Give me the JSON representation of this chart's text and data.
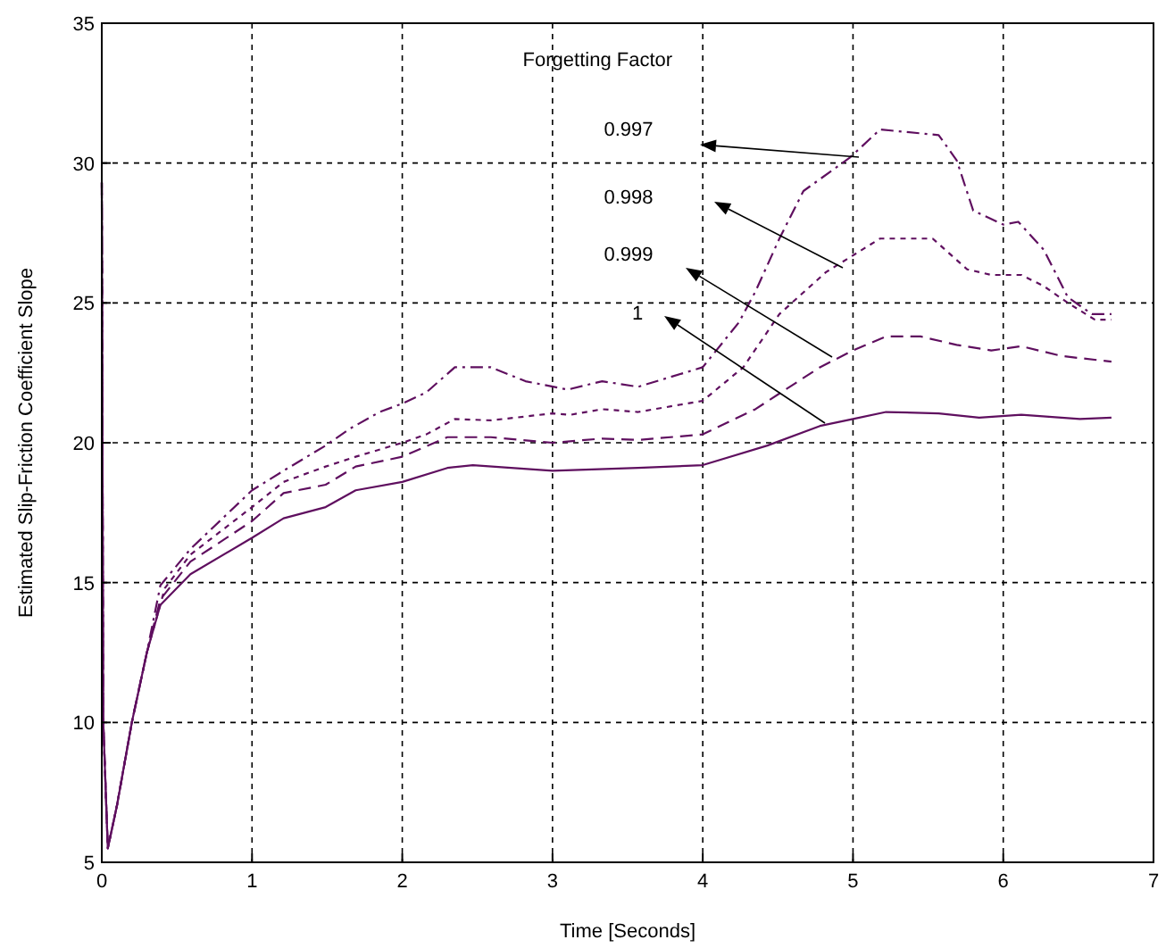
{
  "chart_data": {
    "type": "line",
    "xlabel": "Time [Seconds]",
    "ylabel": "Estimated Slip-Friction Coefficient Slope",
    "legend_title": "Forgetting Factor",
    "xlim": [
      0,
      7
    ],
    "ylim": [
      5,
      35
    ],
    "xticks": [
      0,
      1,
      2,
      3,
      4,
      5,
      6,
      7
    ],
    "yticks": [
      5,
      10,
      15,
      20,
      25,
      30,
      35
    ],
    "grid": true,
    "annotations": [
      "0.997",
      "0.998",
      "0.999",
      "1"
    ],
    "series": [
      {
        "color": "#5f0f5f",
        "line_style": "dashdot",
        "x": [
          0,
          0.01,
          0.04,
          0.1,
          0.2,
          0.3,
          0.39,
          0.59,
          1.0,
          1.21,
          1.49,
          1.65,
          1.85,
          2.0,
          2.16,
          2.35,
          2.59,
          2.82,
          3.1,
          3.33,
          3.57,
          4.0,
          4.24,
          4.35,
          4.51,
          4.67,
          4.98,
          5.18,
          5.57,
          5.69,
          5.8,
          6.0,
          6.1,
          6.27,
          6.43,
          6.59,
          6.72
        ],
        "values": [
          29.3,
          10,
          5.5,
          7,
          10,
          12.5,
          14.9,
          16.2,
          18.3,
          19.0,
          19.9,
          20.5,
          21.1,
          21.4,
          21.8,
          22.7,
          22.7,
          22.2,
          21.9,
          22.2,
          22.0,
          22.7,
          24.3,
          25.4,
          27.3,
          29.0,
          30.2,
          31.2,
          31.0,
          30.1,
          28.3,
          27.8,
          27.9,
          26.9,
          25.2,
          24.6,
          24.6
        ]
      },
      {
        "color": "#5f0f5f",
        "line_style": "dotted",
        "x": [
          0,
          0.01,
          0.04,
          0.1,
          0.2,
          0.3,
          0.42,
          0.59,
          1.0,
          1.21,
          1.49,
          1.69,
          2.0,
          2.16,
          2.35,
          2.59,
          3.0,
          3.12,
          3.33,
          3.57,
          4.0,
          4.27,
          4.51,
          4.82,
          5.0,
          5.18,
          5.53,
          5.76,
          5.92,
          6.12,
          6.27,
          6.43,
          6.61,
          6.72
        ],
        "values": [
          29.3,
          10,
          5.5,
          7,
          10,
          12.5,
          14.8,
          16.0,
          17.7,
          18.6,
          19.15,
          19.5,
          20.0,
          20.3,
          20.85,
          20.8,
          21.05,
          21.0,
          21.2,
          21.1,
          21.5,
          22.7,
          24.6,
          26.1,
          26.7,
          27.3,
          27.3,
          26.2,
          26.0,
          26.0,
          25.6,
          25.0,
          24.4,
          24.4
        ]
      },
      {
        "color": "#5f0f5f",
        "line_style": "dashed",
        "x": [
          0,
          0.01,
          0.04,
          0.1,
          0.2,
          0.3,
          0.39,
          0.59,
          1.0,
          1.21,
          1.49,
          1.69,
          2.0,
          2.3,
          2.59,
          3.0,
          3.33,
          3.57,
          4.0,
          4.35,
          4.78,
          5.0,
          5.22,
          5.45,
          5.69,
          5.92,
          6.12,
          6.39,
          6.72
        ],
        "values": [
          29.3,
          10,
          5.5,
          7,
          10,
          12.5,
          14.4,
          15.75,
          17.2,
          18.2,
          18.5,
          19.15,
          19.5,
          20.2,
          20.2,
          20.0,
          20.15,
          20.1,
          20.3,
          21.2,
          22.7,
          23.3,
          23.8,
          23.8,
          23.5,
          23.3,
          23.45,
          23.1,
          22.9
        ]
      },
      {
        "color": "#5f0f5f",
        "line_style": "solid",
        "x": [
          0,
          0.01,
          0.04,
          0.1,
          0.2,
          0.3,
          0.39,
          0.59,
          1.0,
          1.21,
          1.49,
          1.69,
          2.0,
          2.3,
          2.47,
          3.0,
          3.57,
          4.0,
          4.43,
          4.78,
          5.0,
          5.22,
          5.57,
          5.84,
          6.12,
          6.51,
          6.72
        ],
        "values": [
          29.3,
          10,
          5.5,
          7,
          10,
          12.5,
          14.2,
          15.3,
          16.6,
          17.3,
          17.7,
          18.3,
          18.6,
          19.1,
          19.2,
          19.0,
          19.1,
          19.2,
          19.9,
          20.6,
          20.85,
          21.1,
          21.05,
          20.9,
          21.0,
          20.85,
          20.9
        ]
      }
    ]
  }
}
